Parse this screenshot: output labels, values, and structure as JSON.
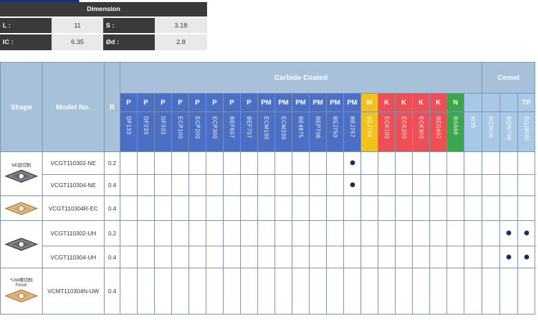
{
  "dimension": {
    "title": "Dimension",
    "rows": [
      {
        "label1": "L :",
        "value1": "11",
        "label2": "S :",
        "value2": "3.18"
      },
      {
        "label1": "IC :",
        "value1": "6.35",
        "label2": "Ød :",
        "value2": "2.8"
      }
    ]
  },
  "table": {
    "col_shape": "Shape",
    "col_model": "Model No.",
    "col_r": "R",
    "group_carbide": "Carbide Coated",
    "group_cermet": "Cemet",
    "grades": [
      {
        "mat": "P",
        "name": "DF133",
        "color": "#4a6fc4"
      },
      {
        "mat": "P",
        "name": "DF233",
        "color": "#4a6fc4"
      },
      {
        "mat": "P",
        "name": "DF333",
        "color": "#4a6fc4"
      },
      {
        "mat": "P",
        "name": "ECP100",
        "color": "#4a6fc4"
      },
      {
        "mat": "P",
        "name": "ECP200",
        "color": "#4a6fc4"
      },
      {
        "mat": "P",
        "name": "ECP300",
        "color": "#4a6fc4"
      },
      {
        "mat": "P",
        "name": "BEF607",
        "color": "#4a6fc4"
      },
      {
        "mat": "P",
        "name": "BEF707",
        "color": "#4a6fc4"
      },
      {
        "mat": "PM",
        "name": "ECM100",
        "color": "#4a6fc4"
      },
      {
        "mat": "PM",
        "name": "ECM200",
        "color": "#4a6fc4"
      },
      {
        "mat": "PM",
        "name": "BE4875",
        "color": "#4a6fc4"
      },
      {
        "mat": "PM",
        "name": "BEP706",
        "color": "#4a6fc4"
      },
      {
        "mat": "PM",
        "name": "BEJ750",
        "color": "#4a6fc4"
      },
      {
        "mat": "PM",
        "name": "BEJ757",
        "color": "#4a6fc4"
      },
      {
        "mat": "M",
        "name": "BEJ758",
        "color": "#f3c21a"
      },
      {
        "mat": "K",
        "name": "ECK100",
        "color": "#ef4e54"
      },
      {
        "mat": "K",
        "name": "ECK200",
        "color": "#ef4e54"
      },
      {
        "mat": "K",
        "name": "ECK300",
        "color": "#ef4e54"
      },
      {
        "mat": "K",
        "name": "BEG607",
        "color": "#ef4e54"
      },
      {
        "mat": "N",
        "name": "BG666",
        "color": "#3aa84a"
      },
      {
        "mat": "",
        "name": "W35",
        "color": "#a7c8e6"
      },
      {
        "mat": "",
        "name": "BQJ606",
        "color": "#a7c8e6"
      },
      {
        "mat": "",
        "name": "BQW706",
        "color": "#a7c8e6"
      },
      {
        "mat": "TP",
        "name": "BQJ806F",
        "color": "#a7c8e6"
      }
    ],
    "groups": [
      {
        "name": "NE",
        "caption": "NE超切削",
        "style": "dark"
      },
      {
        "name": "EC",
        "caption": "",
        "style": "gold"
      },
      {
        "name": "UH",
        "caption": "",
        "style": "dark"
      },
      {
        "name": "UW",
        "caption": "*UW精切削\nFinish",
        "style": "gold"
      }
    ],
    "rows": [
      {
        "model": "VCGT110302-NE",
        "r": "0.2",
        "dots": [
          13
        ],
        "group": 0
      },
      {
        "model": "VCGT110304-NE",
        "r": "0.4",
        "dots": [
          13
        ],
        "group": 0
      },
      {
        "model": "VCGT110304R-EC",
        "r": "0.4",
        "dots": [],
        "group": 1
      },
      {
        "model": "VCGT110302-UH",
        "r": "0.2",
        "dots": [
          22,
          23
        ],
        "group": 2
      },
      {
        "model": "VCGT110304-UH",
        "r": "0.4",
        "dots": [
          22,
          23
        ],
        "group": 2
      },
      {
        "model": "VCMT110304N-UW",
        "r": "0.4",
        "dots": [],
        "group": 3
      }
    ]
  }
}
